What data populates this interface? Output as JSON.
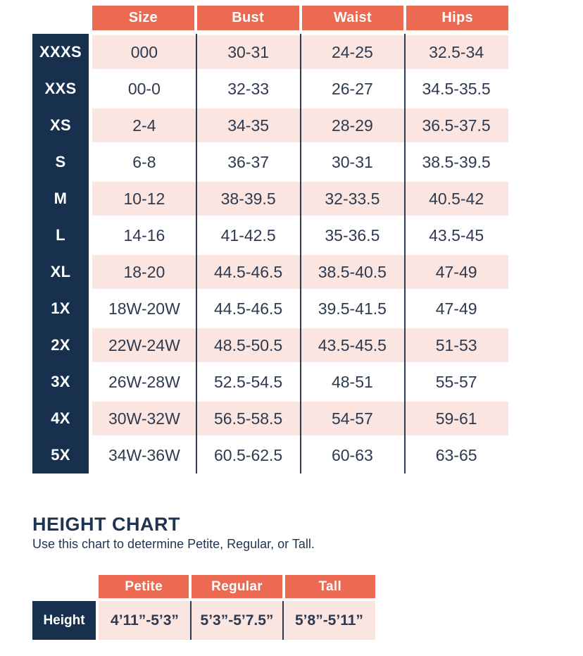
{
  "size_chart": {
    "columns": [
      "Size",
      "Bust",
      "Waist",
      "Hips"
    ],
    "rows": [
      {
        "label": "XXXS",
        "size": "000",
        "bust": "30-31",
        "waist": "24-25",
        "hips": "32.5-34"
      },
      {
        "label": "XXS",
        "size": "00-0",
        "bust": "32-33",
        "waist": "26-27",
        "hips": "34.5-35.5"
      },
      {
        "label": "XS",
        "size": "2-4",
        "bust": "34-35",
        "waist": "28-29",
        "hips": "36.5-37.5"
      },
      {
        "label": "S",
        "size": "6-8",
        "bust": "36-37",
        "waist": "30-31",
        "hips": "38.5-39.5"
      },
      {
        "label": "M",
        "size": "10-12",
        "bust": "38-39.5",
        "waist": "32-33.5",
        "hips": "40.5-42"
      },
      {
        "label": "L",
        "size": "14-16",
        "bust": "41-42.5",
        "waist": "35-36.5",
        "hips": "43.5-45"
      },
      {
        "label": "XL",
        "size": "18-20",
        "bust": "44.5-46.5",
        "waist": "38.5-40.5",
        "hips": "47-49"
      },
      {
        "label": "1X",
        "size": "18W-20W",
        "bust": "44.5-46.5",
        "waist": "39.5-41.5",
        "hips": "47-49"
      },
      {
        "label": "2X",
        "size": "22W-24W",
        "bust": "48.5-50.5",
        "waist": "43.5-45.5",
        "hips": "51-53"
      },
      {
        "label": "3X",
        "size": "26W-28W",
        "bust": "52.5-54.5",
        "waist": "48-51",
        "hips": "55-57"
      },
      {
        "label": "4X",
        "size": "30W-32W",
        "bust": "56.5-58.5",
        "waist": "54-57",
        "hips": "59-61"
      },
      {
        "label": "5X",
        "size": "34W-36W",
        "bust": "60.5-62.5",
        "waist": "60-63",
        "hips": "63-65"
      }
    ]
  },
  "height_chart": {
    "title": "HEIGHT CHART",
    "subtitle": "Use this chart to determine Petite, Regular, or Tall.",
    "columns": [
      "Petite",
      "Regular",
      "Tall"
    ],
    "row_label": "Height",
    "values": [
      "4’11”-5’3”",
      "5’3”-5’7.5”",
      "5’8”-5’11”"
    ]
  },
  "colors": {
    "coral": "#ED6A52",
    "navy": "#16304E",
    "pink": "#FBE5E0",
    "text_dark": "#2E3A50",
    "white": "#FFFFFF"
  }
}
